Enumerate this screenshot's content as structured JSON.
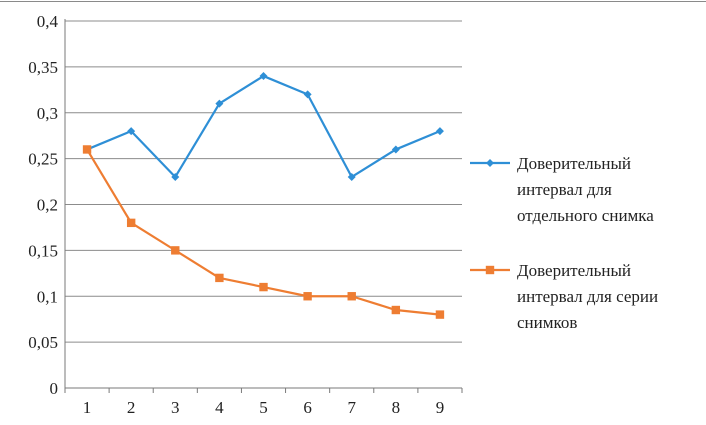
{
  "chart_data": {
    "type": "line",
    "x": [
      1,
      2,
      3,
      4,
      5,
      6,
      7,
      8,
      9
    ],
    "ylim": [
      0,
      0.4
    ],
    "y_ticks": [
      "0",
      "0,05",
      "0,1",
      "0,15",
      "0,2",
      "0,25",
      "0,3",
      "0,35",
      "0,4"
    ],
    "x_ticks": [
      "1",
      "2",
      "3",
      "4",
      "5",
      "6",
      "7",
      "8",
      "9"
    ],
    "grid": true,
    "legend_position": "right",
    "series": [
      {
        "name": "Доверительный интервал для отдельного снимка",
        "legend_lines": [
          "Доверительный",
          "интервал для",
          "отдельного снимка"
        ],
        "color": "#2e8fd6",
        "marker": "diamond",
        "values": [
          0.26,
          0.28,
          0.23,
          0.31,
          0.34,
          0.32,
          0.23,
          0.26,
          0.28
        ]
      },
      {
        "name": "Доверительный интервал для серии снимков",
        "legend_lines": [
          "Доверительный",
          "интервал для серии",
          "снимков"
        ],
        "color": "#ee7d32",
        "marker": "square",
        "values": [
          0.26,
          0.18,
          0.15,
          0.12,
          0.11,
          0.1,
          0.1,
          0.085,
          0.08
        ]
      }
    ]
  }
}
